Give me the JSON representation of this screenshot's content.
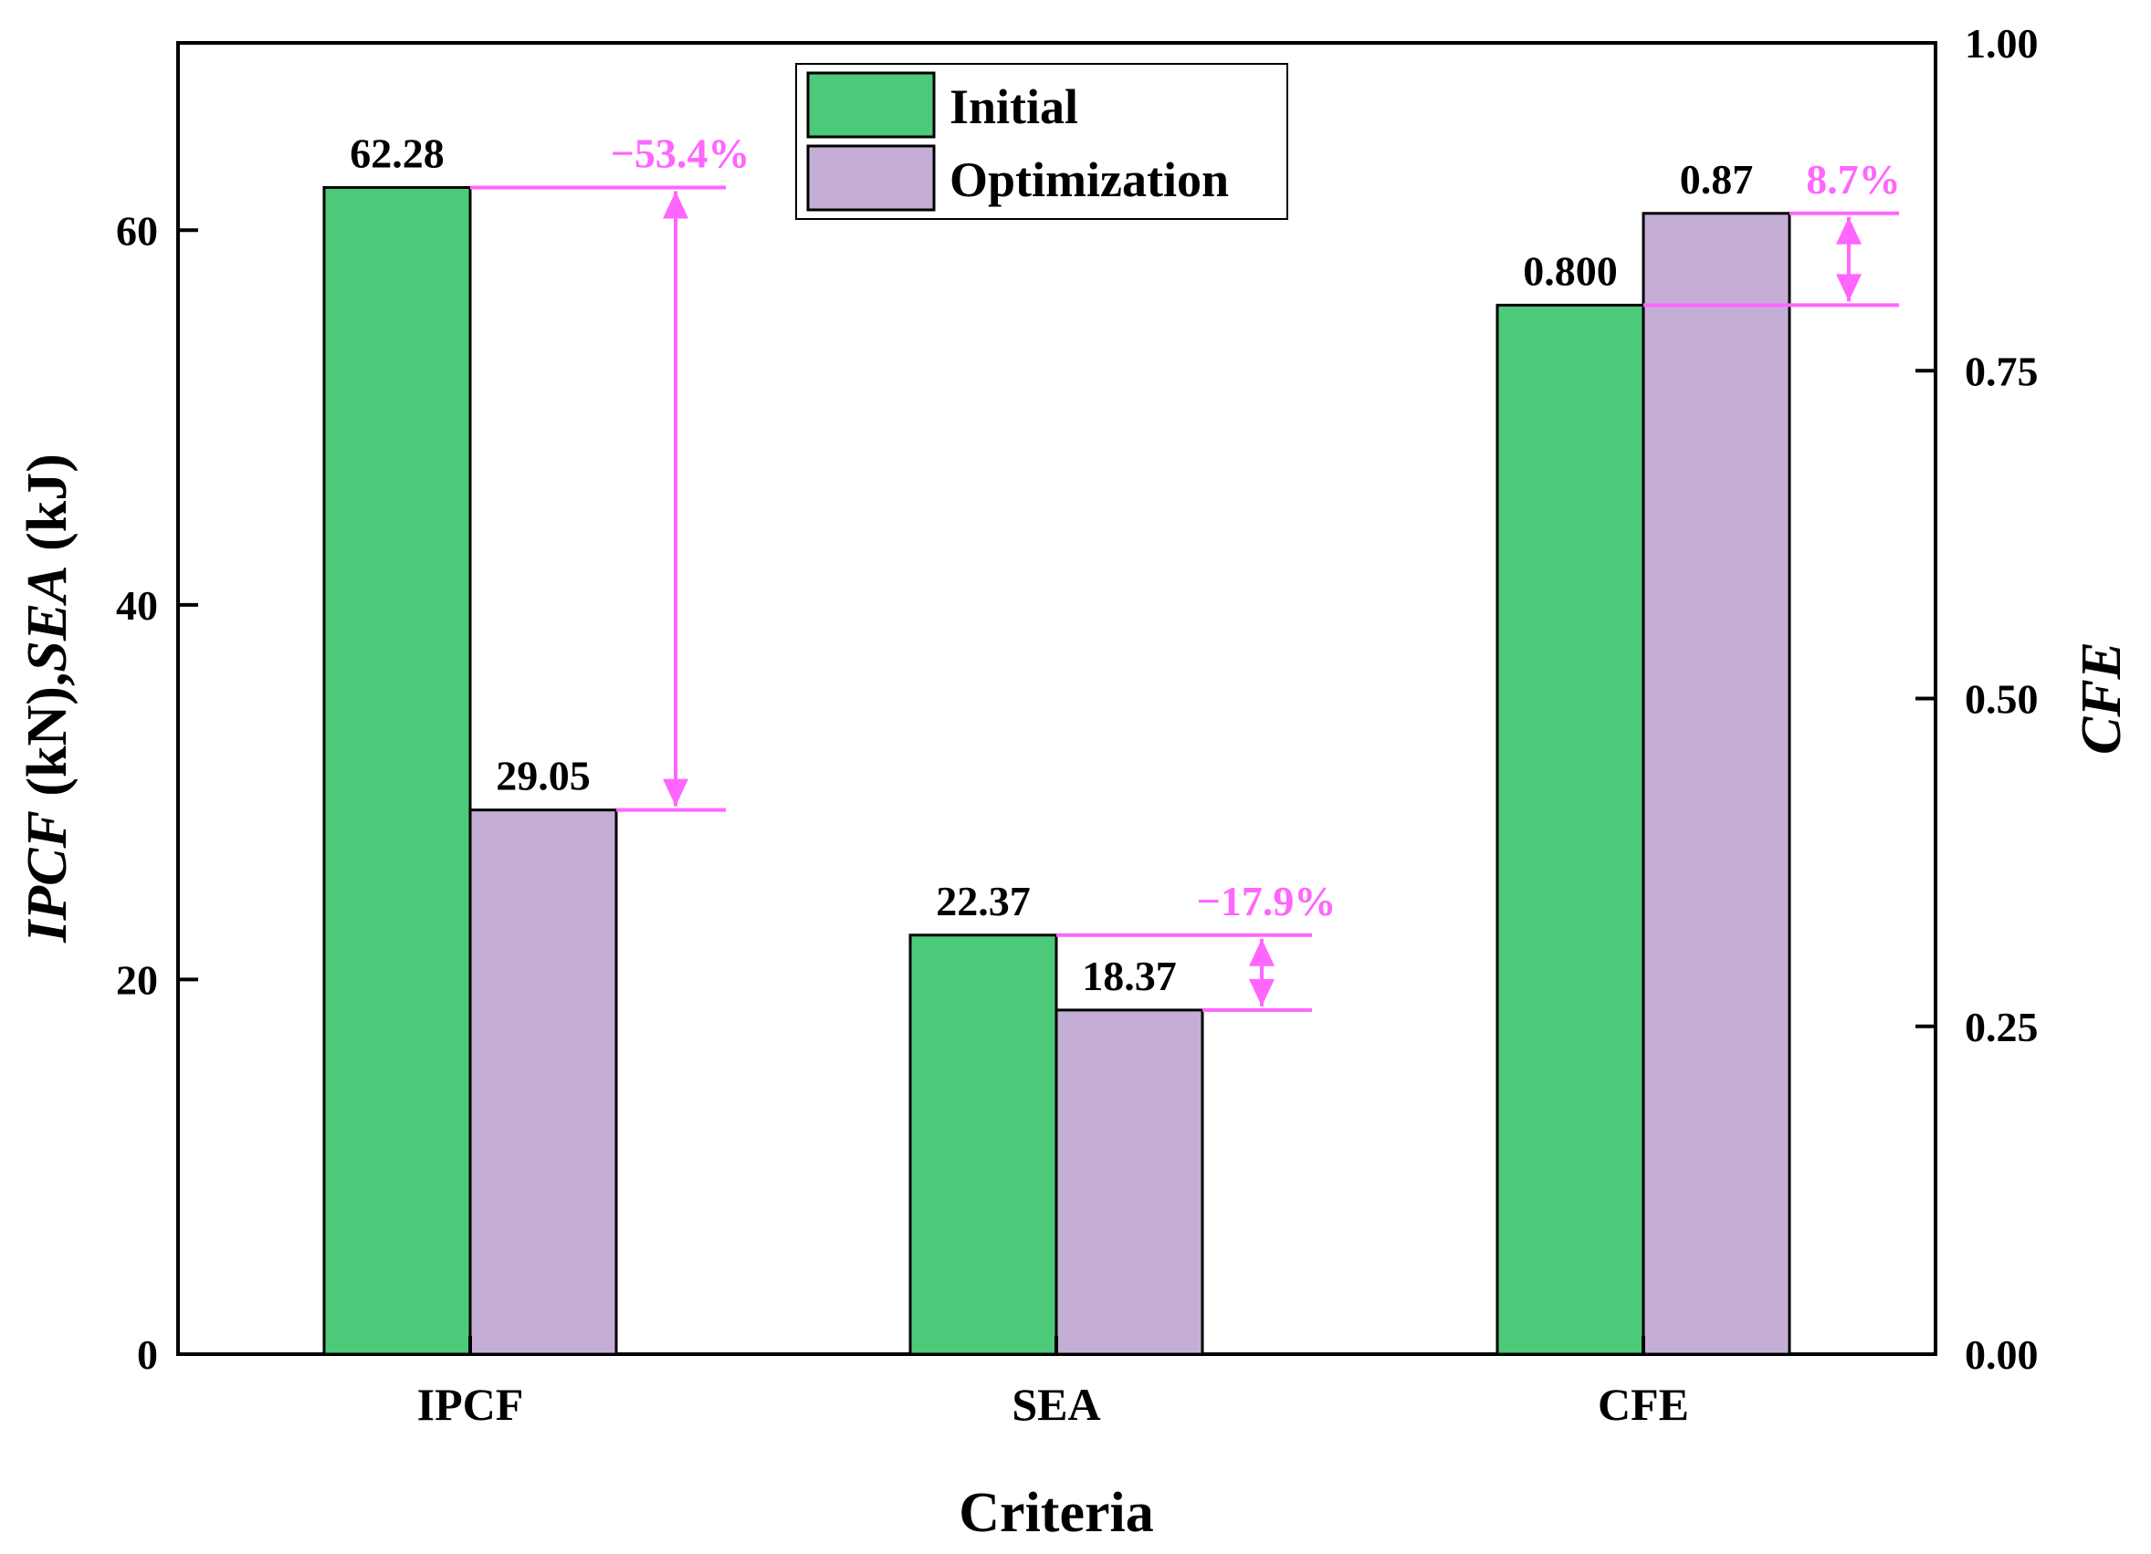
{
  "chart_data": {
    "type": "bar",
    "categories": [
      "IPCF",
      "SEA",
      "CFE"
    ],
    "series": [
      {
        "name": "Initial",
        "color": "#4dc97a",
        "values": [
          62.28,
          22.37,
          0.8
        ]
      },
      {
        "name": "Optimization",
        "color": "#c4aed6",
        "values": [
          29.05,
          18.37,
          0.87
        ]
      }
    ],
    "value_labels": {
      "Initial": [
        "62.28",
        "22.37",
        "0.800"
      ],
      "Optimization": [
        "29.05",
        "18.37",
        "0.87"
      ]
    },
    "category_axis": [
      "left",
      "left",
      "right"
    ],
    "changes": [
      {
        "category": "IPCF",
        "label": "−53.4%"
      },
      {
        "category": "SEA",
        "label": "−17.9%"
      },
      {
        "category": "CFE",
        "label": "8.7%"
      }
    ],
    "change_color": "#ff66ff",
    "xlabel": "Criteria",
    "ylabel_left": {
      "parts": [
        {
          "text": "IPCF",
          "italic": true
        },
        {
          "text": " (kN),",
          "italic": false
        },
        {
          "text": "SEA",
          "italic": true
        },
        {
          "text": " (kJ)",
          "italic": false
        }
      ]
    },
    "ylabel_right": "CFE",
    "ylim_left": [
      0,
      70
    ],
    "ylim_right": [
      0,
      1.0
    ],
    "yticks_left": [
      0,
      20,
      40,
      60
    ],
    "ytick_labels_left": [
      "0",
      "20",
      "40",
      "60"
    ],
    "yticks_right": [
      0,
      0.25,
      0.5,
      0.75,
      1.0
    ],
    "ytick_labels_right": [
      "0.00",
      "0.25",
      "0.50",
      "0.75",
      "1.00"
    ],
    "legend": {
      "position": "top-center",
      "entries": [
        "Initial",
        "Optimization"
      ]
    },
    "grid": false
  }
}
